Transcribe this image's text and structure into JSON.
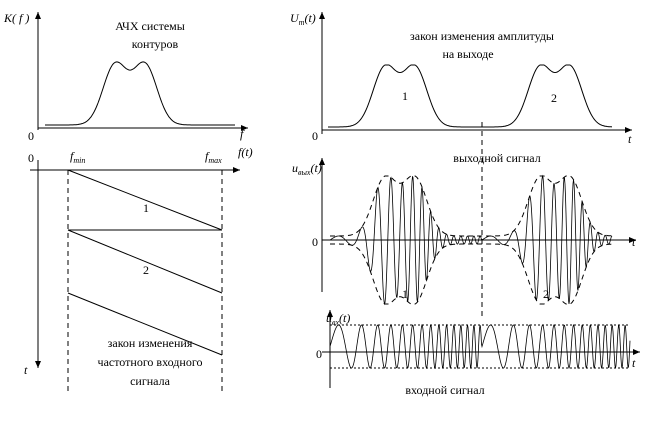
{
  "left_top": {
    "y_label": "K( f )",
    "caption": [
      "АЧХ системы",
      "контуров"
    ],
    "origin": "0",
    "x_label": "f",
    "x_label_2": "f(t)"
  },
  "left_bottom": {
    "origin": "0",
    "f_min": {
      "main": "f",
      "sub": "min"
    },
    "f_max": {
      "main": "f",
      "sub": "max"
    },
    "labels": [
      "1",
      "2"
    ],
    "t_label": "t",
    "caption": [
      "закон изменения",
      "частотного входного",
      "сигнала"
    ]
  },
  "right_top": {
    "y_label": {
      "main": "U",
      "sub": "m",
      "rest": "(t)"
    },
    "caption": [
      "закон изменения амплитуды",
      "на  выходе"
    ],
    "labels": [
      "1",
      "2"
    ],
    "origin": "0",
    "t_label": "t"
  },
  "right_middle": {
    "y_label": {
      "main": "u",
      "sub": "вых",
      "rest": "(t)"
    },
    "caption": "выходной сигнал",
    "origin": "0",
    "t_label": "t",
    "labels": [
      "1",
      "2"
    ]
  },
  "right_bottom": {
    "y_label": {
      "main": "u",
      "sub": "вх",
      "rest": "(t)"
    },
    "origin": "0",
    "t_label": "t",
    "caption": "входной сигнал"
  }
}
